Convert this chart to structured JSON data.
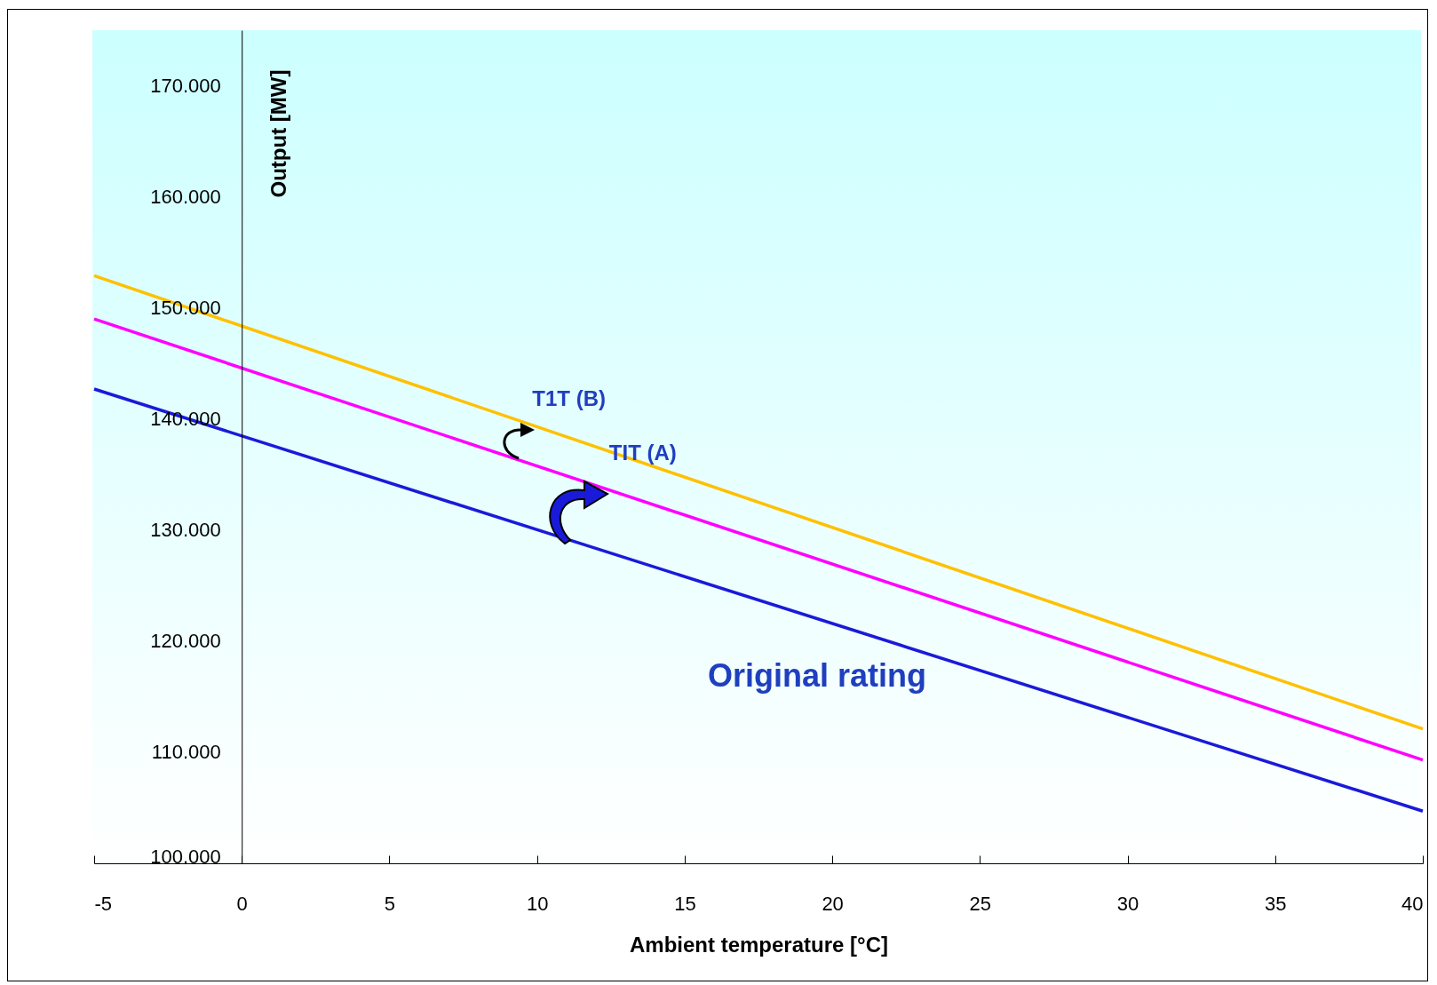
{
  "chart_data": {
    "type": "line",
    "xlabel": "Ambient temperature [°C]",
    "ylabel": "Output [MW]",
    "x": [
      -5,
      40
    ],
    "series": [
      {
        "color": "#ffc000",
        "values": [
          152900,
          112100
        ]
      },
      {
        "color": "#ff00ff",
        "values": [
          149000,
          109300
        ]
      },
      {
        "color": "#1a1ad9",
        "values": [
          142700,
          104700
        ]
      }
    ],
    "xlim": [
      -5,
      40
    ],
    "xticks": [
      -5,
      0,
      5,
      10,
      15,
      20,
      25,
      30,
      35,
      40
    ],
    "ylim": [
      100000,
      175000
    ],
    "yticks": [
      {
        "value": 100000,
        "label": "100.000"
      },
      {
        "value": 110000,
        "label": "110.000"
      },
      {
        "value": 120000,
        "label": "120.000"
      },
      {
        "value": 130000,
        "label": "130.000"
      },
      {
        "value": 140000,
        "label": "140.000"
      },
      {
        "value": 150000,
        "label": "150.000"
      },
      {
        "value": 160000,
        "label": "160.000"
      },
      {
        "value": 170000,
        "label": "170.000"
      }
    ],
    "annotations": [
      {
        "text": "T1T (B)",
        "x": 10,
        "y": 139300
      },
      {
        "text": "TIT (A)",
        "x": 12.2,
        "y": 133800
      },
      "Original rating"
    ],
    "line_style": "solid"
  }
}
